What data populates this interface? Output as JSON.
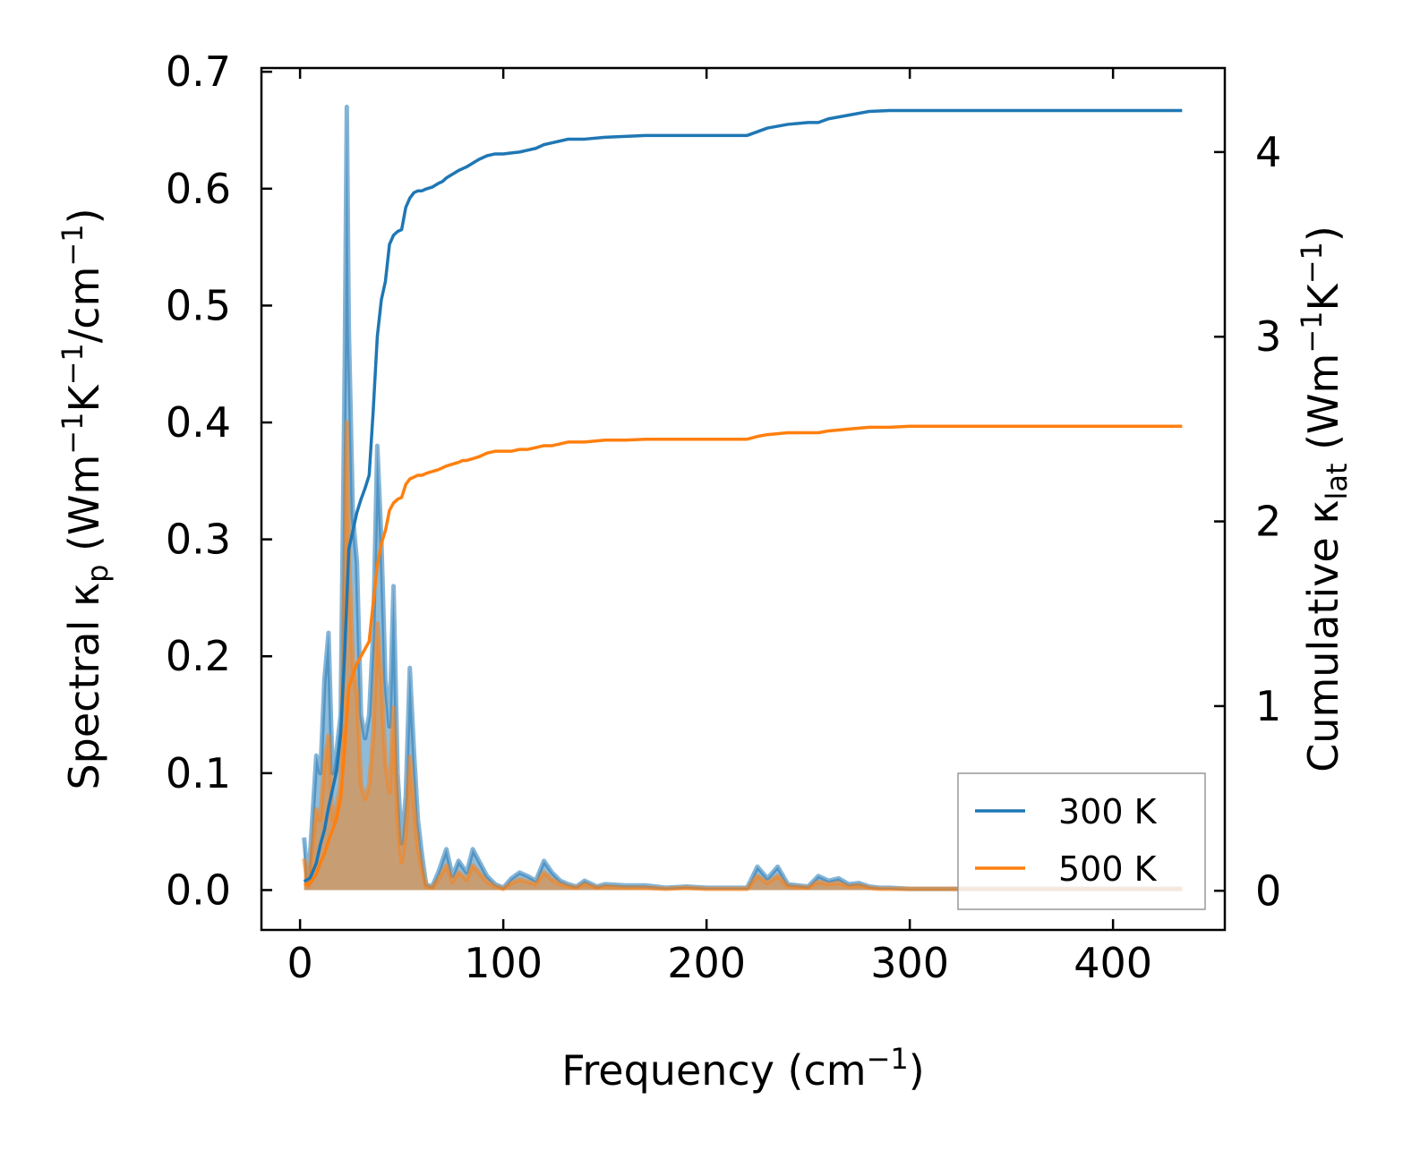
{
  "chart_data": {
    "type": "line",
    "xlabel": "Frequency (cm",
    "xlabel_sup": "−1",
    "xlabel_tail": ")",
    "xlim": [
      -19,
      455
    ],
    "x_ticks": [
      0,
      100,
      200,
      300,
      400
    ],
    "x_tick_labels": [
      "0",
      "100",
      "200",
      "300",
      "400"
    ],
    "left_axis": {
      "label_parts": [
        "Spectral κ",
        "p",
        " (Wm",
        "−1",
        "K",
        "−1",
        "/cm",
        "−1",
        ")"
      ],
      "ylim": [
        -0.0341,
        0.7032
      ],
      "ticks": [
        0.0,
        0.1,
        0.2,
        0.3,
        0.4,
        0.5,
        0.6,
        0.7
      ],
      "tick_labels": [
        "0.0",
        "0.1",
        "0.2",
        "0.3",
        "0.4",
        "0.5",
        "0.6",
        "0.7"
      ]
    },
    "right_axis": {
      "label_parts": [
        "Cumulative κ",
        "lat",
        " (Wm",
        "−1",
        "K",
        "−1",
        ")"
      ],
      "ylim": [
        -0.212,
        4.455
      ],
      "ticks": [
        0,
        1,
        2,
        3,
        4
      ],
      "tick_labels": [
        "0",
        "1",
        "2",
        "3",
        "4"
      ]
    },
    "legend": {
      "position": "lower-right",
      "entries": [
        {
          "label": "300 K",
          "color": "#1f77b4"
        },
        {
          "label": "500 K",
          "color": "#ff7f0e"
        }
      ]
    },
    "spectral_series": [
      {
        "name": "300 K",
        "axis": "left",
        "color": "#1f77b4",
        "x": [
          2,
          4,
          8,
          10,
          12,
          14,
          16,
          18,
          20,
          22,
          23,
          24,
          26,
          28,
          30,
          32,
          34,
          36,
          38,
          40,
          42,
          44,
          46,
          48,
          50,
          52,
          54,
          56,
          58,
          60,
          62,
          65,
          68,
          72,
          75,
          78,
          82,
          85,
          88,
          92,
          96,
          100,
          104,
          108,
          112,
          116,
          120,
          124,
          128,
          132,
          136,
          140,
          146,
          150,
          160,
          170,
          180,
          190,
          200,
          210,
          220,
          225,
          230,
          235,
          240,
          250,
          255,
          260,
          265,
          270,
          275,
          280,
          285,
          290,
          300,
          320,
          350,
          380,
          410,
          434
        ],
        "y": [
          0.045,
          0.005,
          0.115,
          0.1,
          0.18,
          0.22,
          0.1,
          0.12,
          0.15,
          0.45,
          0.67,
          0.48,
          0.32,
          0.28,
          0.15,
          0.13,
          0.15,
          0.22,
          0.38,
          0.3,
          0.18,
          0.14,
          0.26,
          0.1,
          0.04,
          0.08,
          0.19,
          0.12,
          0.06,
          0.03,
          0.005,
          0.003,
          0.015,
          0.035,
          0.012,
          0.025,
          0.015,
          0.035,
          0.025,
          0.012,
          0.005,
          0.002,
          0.01,
          0.015,
          0.012,
          0.008,
          0.025,
          0.015,
          0.008,
          0.005,
          0.003,
          0.008,
          0.003,
          0.005,
          0.004,
          0.004,
          0.002,
          0.003,
          0.002,
          0.002,
          0.002,
          0.02,
          0.01,
          0.02,
          0.005,
          0.003,
          0.012,
          0.008,
          0.01,
          0.005,
          0.006,
          0.003,
          0.002,
          0.002,
          0.001,
          0.001,
          0.001,
          0.001,
          0.001,
          0.001
        ]
      },
      {
        "name": "500 K",
        "axis": "left",
        "color": "#ff7f0e",
        "x": [
          2,
          4,
          8,
          10,
          12,
          14,
          16,
          18,
          20,
          22,
          23,
          24,
          26,
          28,
          30,
          32,
          34,
          36,
          38,
          40,
          42,
          44,
          46,
          48,
          50,
          52,
          54,
          56,
          58,
          60,
          62,
          65,
          68,
          72,
          75,
          78,
          82,
          85,
          88,
          92,
          96,
          100,
          104,
          108,
          112,
          116,
          120,
          124,
          128,
          132,
          136,
          140,
          146,
          150,
          160,
          170,
          180,
          190,
          200,
          210,
          220,
          225,
          230,
          235,
          240,
          250,
          255,
          260,
          265,
          270,
          275,
          280,
          285,
          290,
          300,
          320,
          350,
          380,
          410,
          434
        ],
        "y": [
          0.027,
          0.003,
          0.069,
          0.06,
          0.108,
          0.132,
          0.06,
          0.072,
          0.09,
          0.27,
          0.4,
          0.288,
          0.192,
          0.168,
          0.09,
          0.078,
          0.09,
          0.132,
          0.228,
          0.18,
          0.108,
          0.084,
          0.156,
          0.06,
          0.024,
          0.048,
          0.114,
          0.072,
          0.036,
          0.018,
          0.003,
          0.002,
          0.009,
          0.021,
          0.007,
          0.015,
          0.009,
          0.021,
          0.015,
          0.007,
          0.003,
          0.001,
          0.006,
          0.009,
          0.007,
          0.005,
          0.015,
          0.009,
          0.005,
          0.003,
          0.002,
          0.005,
          0.002,
          0.003,
          0.002,
          0.002,
          0.001,
          0.002,
          0.001,
          0.001,
          0.001,
          0.012,
          0.006,
          0.012,
          0.003,
          0.002,
          0.007,
          0.005,
          0.006,
          0.003,
          0.004,
          0.002,
          0.001,
          0.001,
          0.001,
          0.001,
          0.001,
          0.001,
          0.001,
          0.001
        ]
      }
    ],
    "cumulative_series": [
      {
        "name": "300 K",
        "axis": "right",
        "color": "#1f77b4",
        "x": [
          2,
          5,
          8,
          10,
          12,
          14,
          16,
          18,
          20,
          22,
          24,
          26,
          28,
          30,
          32,
          34,
          36,
          38,
          40,
          42,
          44,
          46,
          48,
          50,
          52,
          54,
          56,
          58,
          60,
          62,
          65,
          68,
          70,
          72,
          75,
          78,
          80,
          82,
          85,
          88,
          92,
          96,
          100,
          104,
          108,
          112,
          116,
          120,
          124,
          128,
          132,
          140,
          150,
          160,
          170,
          180,
          190,
          200,
          210,
          220,
          225,
          230,
          240,
          250,
          255,
          260,
          270,
          280,
          290,
          300,
          350,
          400,
          434
        ],
        "y": [
          0.05,
          0.07,
          0.15,
          0.25,
          0.33,
          0.45,
          0.55,
          0.65,
          0.85,
          1.3,
          1.85,
          1.95,
          2.05,
          2.12,
          2.18,
          2.25,
          2.6,
          3.0,
          3.2,
          3.3,
          3.5,
          3.55,
          3.57,
          3.58,
          3.7,
          3.75,
          3.78,
          3.79,
          3.79,
          3.8,
          3.81,
          3.83,
          3.84,
          3.86,
          3.88,
          3.9,
          3.91,
          3.92,
          3.94,
          3.96,
          3.98,
          3.99,
          3.99,
          3.995,
          4.0,
          4.01,
          4.02,
          4.04,
          4.05,
          4.06,
          4.07,
          4.07,
          4.08,
          4.085,
          4.09,
          4.09,
          4.09,
          4.09,
          4.09,
          4.09,
          4.11,
          4.13,
          4.15,
          4.16,
          4.16,
          4.18,
          4.2,
          4.22,
          4.225,
          4.225,
          4.225,
          4.225,
          4.225
        ]
      },
      {
        "name": "500 K",
        "axis": "right",
        "color": "#ff7f0e",
        "x": [
          2,
          5,
          8,
          10,
          12,
          14,
          16,
          18,
          20,
          22,
          24,
          26,
          28,
          30,
          32,
          34,
          36,
          38,
          40,
          42,
          44,
          46,
          48,
          50,
          52,
          54,
          56,
          58,
          60,
          62,
          65,
          68,
          70,
          72,
          75,
          78,
          80,
          82,
          85,
          88,
          92,
          96,
          100,
          104,
          108,
          112,
          116,
          120,
          124,
          128,
          132,
          140,
          150,
          160,
          170,
          180,
          190,
          200,
          210,
          220,
          225,
          230,
          240,
          250,
          255,
          260,
          270,
          280,
          290,
          300,
          350,
          400,
          434
        ],
        "y": [
          0.03,
          0.04,
          0.09,
          0.15,
          0.2,
          0.27,
          0.33,
          0.39,
          0.5,
          0.78,
          1.1,
          1.17,
          1.23,
          1.27,
          1.31,
          1.35,
          1.56,
          1.76,
          1.88,
          1.95,
          2.06,
          2.1,
          2.12,
          2.13,
          2.2,
          2.23,
          2.24,
          2.25,
          2.25,
          2.26,
          2.27,
          2.28,
          2.29,
          2.3,
          2.31,
          2.32,
          2.33,
          2.33,
          2.34,
          2.35,
          2.37,
          2.38,
          2.38,
          2.38,
          2.39,
          2.39,
          2.4,
          2.41,
          2.41,
          2.42,
          2.43,
          2.43,
          2.44,
          2.44,
          2.445,
          2.445,
          2.445,
          2.445,
          2.445,
          2.445,
          2.46,
          2.47,
          2.48,
          2.48,
          2.48,
          2.49,
          2.5,
          2.51,
          2.51,
          2.515,
          2.515,
          2.515,
          2.515
        ]
      }
    ]
  }
}
